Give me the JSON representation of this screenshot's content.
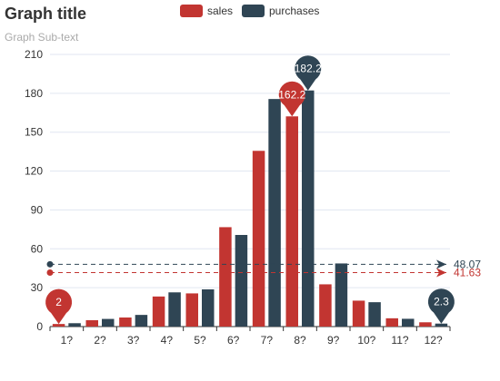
{
  "chart_data": {
    "type": "bar",
    "title": "Graph title",
    "subtitle": "Graph Sub-text",
    "categories": [
      "1?",
      "2?",
      "3?",
      "4?",
      "5?",
      "6?",
      "7?",
      "8?",
      "9?",
      "10?",
      "11?",
      "12?"
    ],
    "series": [
      {
        "name": "sales",
        "color": "#c23531",
        "values": [
          2.0,
          4.9,
          7.0,
          23.2,
          25.6,
          76.7,
          135.6,
          162.2,
          32.6,
          20.0,
          6.4,
          3.3
        ],
        "mark_points": [
          {
            "type": "max",
            "label": "162.2"
          },
          {
            "type": "min",
            "label": "2"
          }
        ],
        "mark_line": {
          "type": "average",
          "label": "41.63",
          "value": 41.63
        }
      },
      {
        "name": "purchases",
        "color": "#2f4554",
        "values": [
          2.6,
          5.9,
          9.0,
          26.4,
          28.7,
          70.7,
          175.6,
          182.2,
          48.7,
          18.8,
          6.0,
          2.3
        ],
        "mark_points": [
          {
            "type": "max",
            "label": "182.2"
          },
          {
            "type": "min",
            "label": "2.3"
          }
        ],
        "mark_line": {
          "type": "average",
          "label": "48.07",
          "value": 48.07
        }
      }
    ],
    "ylim": [
      0,
      210
    ],
    "yticks": [
      "0",
      "30",
      "60",
      "90",
      "120",
      "150",
      "180",
      "210"
    ],
    "grid": true,
    "legend_position": "top-center"
  }
}
